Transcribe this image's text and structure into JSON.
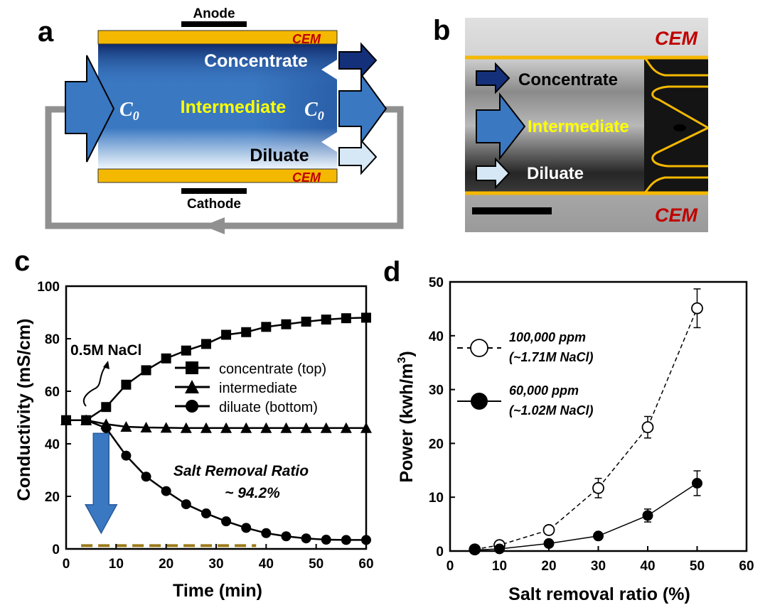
{
  "panel_labels": {
    "a": "a",
    "b": "b",
    "c": "c",
    "d": "d"
  },
  "panel_a": {
    "anode": "Anode",
    "cathode": "Cathode",
    "cem_top": "CEM",
    "cem_bottom": "CEM",
    "concentrate": "Concentrate",
    "intermediate": "Intermediate",
    "diluate": "Diluate",
    "c0_left": "C",
    "c0_left_sub": "0",
    "c0_right": "C",
    "c0_right_sub": "0"
  },
  "panel_b": {
    "cem_top": "CEM",
    "cem_bottom": "CEM",
    "concentrate": "Concentrate",
    "intermediate": "Intermediate",
    "diluate": "Diluate"
  },
  "colors": {
    "membrane": "#f5b800",
    "flow_blue": "#3a78c2",
    "dark_navy": "#14307a",
    "light_blue": "#d6e8f5",
    "cem_text": "#c00000",
    "intermediate_text": "#ffff00",
    "dashed_brown": "#9c7a1a",
    "loop_gray": "#909090"
  },
  "chart_data": [
    {
      "type": "line",
      "panel": "c",
      "xlabel": "Time (min)",
      "ylabel": "Conductivity (mS/cm)",
      "xlim": [
        0,
        60
      ],
      "ylim": [
        0,
        100
      ],
      "xticks": [
        0,
        10,
        20,
        30,
        40,
        50,
        60
      ],
      "yticks": [
        0,
        20,
        40,
        60,
        80,
        100
      ],
      "series": [
        {
          "name": "concentrate (top)",
          "marker": "square",
          "x": [
            0,
            4,
            8,
            12,
            16,
            20,
            24,
            28,
            32,
            36,
            40,
            44,
            48,
            52,
            56,
            60
          ],
          "y": [
            49,
            49,
            54,
            62.5,
            68,
            72.5,
            75.5,
            78,
            81.5,
            82.5,
            84.5,
            85.5,
            86.5,
            87.3,
            87.8,
            88
          ]
        },
        {
          "name": "intermediate",
          "marker": "triangle",
          "x": [
            0,
            4,
            8,
            12,
            16,
            20,
            24,
            28,
            32,
            36,
            40,
            44,
            48,
            52,
            56,
            60
          ],
          "y": [
            49,
            49,
            47.5,
            46.5,
            46.2,
            46.1,
            46,
            46,
            46,
            46,
            46,
            46,
            46,
            46,
            46,
            46
          ]
        },
        {
          "name": "diluate (bottom)",
          "marker": "circle",
          "x": [
            0,
            4,
            8,
            12,
            16,
            20,
            24,
            28,
            32,
            36,
            40,
            44,
            48,
            52,
            56,
            60
          ],
          "y": [
            49,
            49,
            46,
            35.5,
            27.5,
            22,
            17,
            13.5,
            10.5,
            8,
            6,
            4.8,
            4,
            3.5,
            3.4,
            3.4
          ]
        }
      ],
      "annotations": {
        "feed": "0.5M NaCl",
        "removal_label": "Salt Removal Ratio",
        "removal_value": "~ 94.2%"
      },
      "dashed_level": 3.4,
      "dashed_x": [
        3,
        38
      ],
      "arrow_x": 8,
      "arrow_from": 44,
      "arrow_to": 6,
      "legend_position": "center-right"
    },
    {
      "type": "scatter",
      "panel": "d",
      "xlabel": "Salt removal ratio (%)",
      "ylabel": "Power (kwh/m",
      "ylabel_sup": "3",
      "ylabel_end": ")",
      "xlim": [
        0,
        60
      ],
      "ylim": [
        0,
        50
      ],
      "xticks": [
        0,
        10,
        20,
        30,
        40,
        50,
        60
      ],
      "yticks": [
        0,
        10,
        20,
        30,
        40,
        50
      ],
      "series": [
        {
          "name": "100,000 ppm",
          "note": "(~1.71M NaCl)",
          "marker": "open-circle",
          "line": "dashed",
          "x": [
            5,
            10,
            20,
            30,
            40,
            50
          ],
          "y": [
            0.3,
            1.1,
            3.9,
            11.7,
            23,
            45.1
          ],
          "err": [
            0,
            0,
            0,
            1.8,
            2.0,
            3.6
          ]
        },
        {
          "name": "60,000 ppm",
          "note": "(~1.02M NaCl)",
          "marker": "filled-circle",
          "line": "solid",
          "x": [
            5,
            10,
            20,
            30,
            40,
            50
          ],
          "y": [
            0.2,
            0.4,
            1.4,
            2.8,
            6.6,
            12.6
          ],
          "err": [
            0,
            0,
            0,
            0,
            1.2,
            2.3
          ]
        }
      ],
      "legend_position": "upper-left"
    }
  ]
}
